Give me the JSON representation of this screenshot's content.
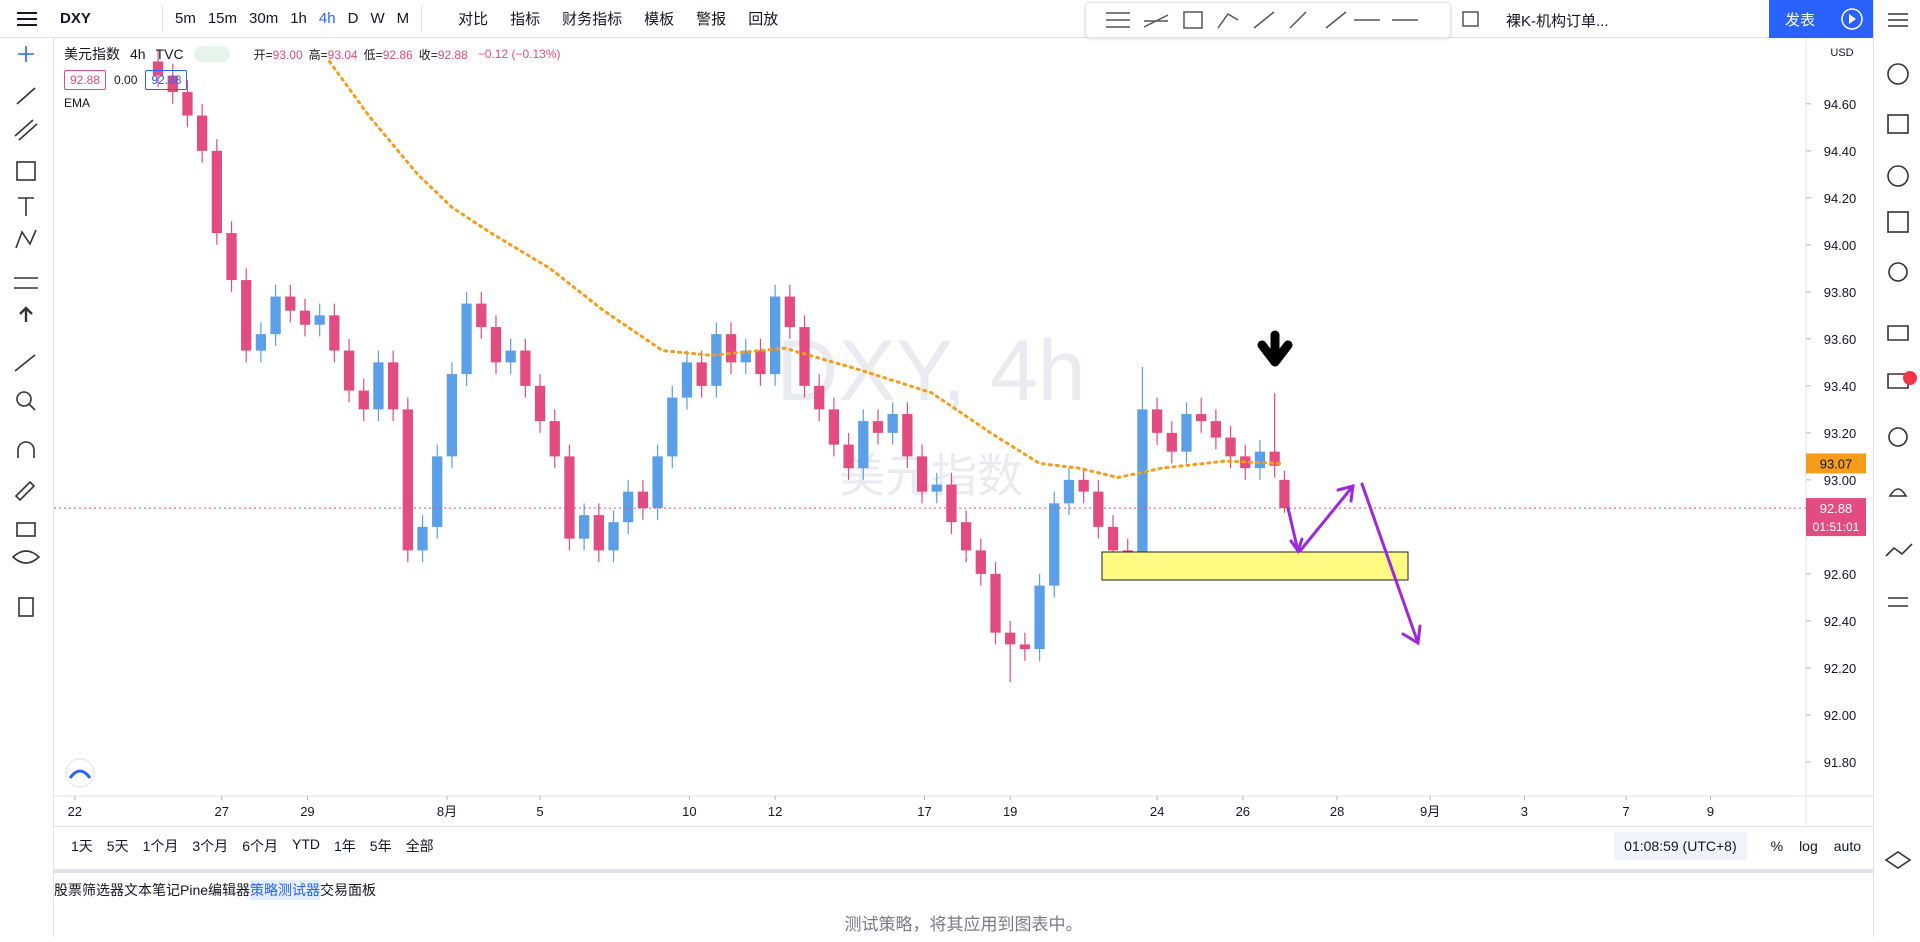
{
  "toolbar": {
    "symbol": "DXY",
    "intervals": [
      "5m",
      "15m",
      "30m",
      "1h",
      "4h",
      "D",
      "W",
      "M"
    ],
    "active_interval": "4h",
    "tools": [
      "对比",
      "指标",
      "财务指标",
      "模板",
      "警报",
      "回放"
    ],
    "layout": "裸K-机构订单...",
    "publish": "发表"
  },
  "legend": {
    "name": "美元指数",
    "interval": "4h",
    "source": "TVC",
    "ohlc": [
      {
        "label": "开=",
        "value": "93.00"
      },
      {
        "label": "高=",
        "value": "93.04"
      },
      {
        "label": "低=",
        "value": "92.86"
      },
      {
        "label": "收=",
        "value": "92.88"
      }
    ],
    "change": "−0.12 (−0.13%)",
    "bid": "92.88",
    "spread": "0.00",
    "ask": "92.88",
    "indicator": "EMA"
  },
  "chart_data": {
    "type": "candlestick",
    "currency": "USD",
    "watermark": {
      "symbol": "DXY, 4h",
      "name": "美元指数"
    },
    "x": [
      17,
      20,
      23,
      26,
      29,
      32,
      35,
      38,
      41,
      44,
      47,
      50,
      53,
      56,
      59,
      62,
      65,
      68,
      71,
      74,
      77,
      80,
      83,
      86,
      89,
      92,
      95,
      98,
      101,
      104,
      107,
      110,
      113,
      116,
      119,
      122,
      125,
      128,
      131,
      134,
      137,
      140,
      143,
      146,
      149,
      152,
      155,
      158,
      161,
      164,
      167,
      170,
      173,
      176,
      179,
      182,
      185,
      188,
      191,
      194,
      197,
      200,
      203,
      206,
      209,
      212,
      215,
      218,
      221,
      224,
      227,
      230,
      233,
      236,
      239,
      242,
      245,
      247
    ],
    "open": [
      94.78,
      94.72,
      94.65,
      94.55,
      94.4,
      94.05,
      93.85,
      93.55,
      93.62,
      93.78,
      93.72,
      93.66,
      93.7,
      93.55,
      93.38,
      93.3,
      93.5,
      93.3,
      92.7,
      92.8,
      93.1,
      93.45,
      93.75,
      93.65,
      93.5,
      93.55,
      93.4,
      93.25,
      93.1,
      92.75,
      92.85,
      92.7,
      92.82,
      92.95,
      92.88,
      93.1,
      93.35,
      93.5,
      93.4,
      93.62,
      93.5,
      93.55,
      93.45,
      93.78,
      93.65,
      93.4,
      93.3,
      93.15,
      93.05,
      93.25,
      93.2,
      93.28,
      93.1,
      92.95,
      92.98,
      92.82,
      92.7,
      92.6,
      92.35,
      92.3,
      92.28,
      92.55,
      92.9,
      93.0,
      92.95,
      92.8,
      92.7,
      92.66,
      93.3,
      93.2,
      93.12,
      93.28,
      93.25,
      93.18,
      93.1,
      93.05,
      93.12,
      93.0
    ],
    "high": [
      94.83,
      94.77,
      94.7,
      94.6,
      94.45,
      94.1,
      93.9,
      93.67,
      93.83,
      93.83,
      93.77,
      93.75,
      93.75,
      93.6,
      93.43,
      93.55,
      93.55,
      93.35,
      92.85,
      93.15,
      93.5,
      93.8,
      93.8,
      93.7,
      93.6,
      93.6,
      93.45,
      93.3,
      93.15,
      92.9,
      92.9,
      92.87,
      93.0,
      93.0,
      93.15,
      93.4,
      93.55,
      93.55,
      93.67,
      93.67,
      93.6,
      93.6,
      93.83,
      93.83,
      93.7,
      93.45,
      93.35,
      93.2,
      93.3,
      93.3,
      93.33,
      93.33,
      93.15,
      93.03,
      93.03,
      92.87,
      92.75,
      92.65,
      92.4,
      92.35,
      92.6,
      92.95,
      93.05,
      93.05,
      93.0,
      92.85,
      92.75,
      93.48,
      93.35,
      93.25,
      93.33,
      93.35,
      93.3,
      93.23,
      93.15,
      93.17,
      93.37,
      93.04
    ],
    "low": [
      94.67,
      94.6,
      94.5,
      94.35,
      94.0,
      93.8,
      93.5,
      93.5,
      93.57,
      93.67,
      93.61,
      93.61,
      93.5,
      93.33,
      93.25,
      93.25,
      93.25,
      92.65,
      92.65,
      92.75,
      93.05,
      93.4,
      93.6,
      93.45,
      93.45,
      93.35,
      93.2,
      93.05,
      92.7,
      92.7,
      92.65,
      92.65,
      92.77,
      92.83,
      92.83,
      93.05,
      93.3,
      93.35,
      93.35,
      93.45,
      93.45,
      93.4,
      93.4,
      93.6,
      93.35,
      93.25,
      93.1,
      93.0,
      93.0,
      93.15,
      93.15,
      93.05,
      92.9,
      92.9,
      92.77,
      92.65,
      92.55,
      92.3,
      92.14,
      92.23,
      92.23,
      92.5,
      92.85,
      92.9,
      92.75,
      92.65,
      92.61,
      92.61,
      93.15,
      93.07,
      93.07,
      93.2,
      93.13,
      93.05,
      93.0,
      93.0,
      93.01,
      92.86
    ],
    "close": [
      94.72,
      94.65,
      94.55,
      94.4,
      94.05,
      93.85,
      93.55,
      93.62,
      93.78,
      93.72,
      93.66,
      93.7,
      93.55,
      93.38,
      93.3,
      93.5,
      93.3,
      92.7,
      92.8,
      93.1,
      93.45,
      93.75,
      93.65,
      93.5,
      93.55,
      93.4,
      93.25,
      93.1,
      92.75,
      92.85,
      92.7,
      92.82,
      92.95,
      92.88,
      93.1,
      93.35,
      93.5,
      93.4,
      93.62,
      93.5,
      93.55,
      93.45,
      93.78,
      93.65,
      93.4,
      93.3,
      93.15,
      93.05,
      93.25,
      93.2,
      93.28,
      93.1,
      92.95,
      92.98,
      92.82,
      92.7,
      92.6,
      92.35,
      92.3,
      92.28,
      92.55,
      92.9,
      93.0,
      92.95,
      92.8,
      92.7,
      92.66,
      93.3,
      93.2,
      93.12,
      93.28,
      93.25,
      93.18,
      93.1,
      93.05,
      93.12,
      93.06,
      92.88
    ],
    "up_color": "#5a9fe8",
    "down_color": "#e24c80",
    "ema": {
      "name": "EMA",
      "color": "#f59c1a",
      "x": [
        52,
        60,
        70,
        77,
        85,
        97,
        108,
        120,
        130,
        145,
        160,
        175,
        187,
        197,
        205,
        213,
        222,
        235,
        246
      ],
      "values": [
        94.78,
        94.55,
        94.3,
        94.16,
        94.05,
        93.9,
        93.72,
        93.55,
        93.53,
        93.56,
        93.47,
        93.37,
        93.2,
        93.07,
        93.05,
        93.01,
        93.05,
        93.08,
        93.07
      ]
    },
    "countdown": "01:51:01",
    "xlim": [
      -4.25,
      353.5
    ],
    "xticks": [
      {
        "value": 0,
        "label": "22"
      },
      {
        "value": 30,
        "label": "27"
      },
      {
        "value": 47.5,
        "label": "29"
      },
      {
        "value": 76,
        "label": "8月"
      },
      {
        "value": 95,
        "label": "5"
      },
      {
        "value": 125.5,
        "label": "10"
      },
      {
        "value": 143,
        "label": "12"
      },
      {
        "value": 173.5,
        "label": "17"
      },
      {
        "value": 191,
        "label": "19"
      },
      {
        "value": 221,
        "label": "24"
      },
      {
        "value": 238.5,
        "label": "26"
      },
      {
        "value": 257.75,
        "label": "28"
      },
      {
        "value": 276.75,
        "label": "9月"
      },
      {
        "value": 296,
        "label": "3"
      },
      {
        "value": 316.75,
        "label": "7"
      },
      {
        "value": 334,
        "label": "9"
      }
    ],
    "ylim": [
      91.655,
      94.88
    ],
    "yticks": [
      {
        "value": 91.8,
        "label": "91.80"
      },
      {
        "value": 92.0,
        "label": "92.00"
      },
      {
        "value": 92.2,
        "label": "92.20"
      },
      {
        "value": 92.4,
        "label": "92.40"
      },
      {
        "value": 92.6,
        "label": "92.60"
      },
      {
        "value": 92.8,
        "label": "92.80"
      },
      {
        "value": 93.0,
        "label": "93.00"
      },
      {
        "value": 93.2,
        "label": "93.20"
      },
      {
        "value": 93.4,
        "label": "93.40"
      },
      {
        "value": 93.6,
        "label": "93.60"
      },
      {
        "value": 93.8,
        "label": "93.80"
      },
      {
        "value": 94.0,
        "label": "94.00"
      },
      {
        "value": 94.2,
        "label": "94.20"
      },
      {
        "value": 94.4,
        "label": "94.40"
      },
      {
        "value": 94.6,
        "label": "94.60"
      }
    ],
    "grid": false
  },
  "range_bar": {
    "ranges": [
      "1天",
      "5天",
      "1个月",
      "3个月",
      "6个月",
      "YTD",
      "1年",
      "5年",
      "全部"
    ],
    "clock": "01:08:59 (UTC+8)",
    "options": [
      "%",
      "log",
      "auto"
    ]
  },
  "bottom_panel": {
    "tabs": [
      "股票筛选器",
      "文本笔记",
      "Pine编辑器",
      "策略测试器",
      "交易面板"
    ],
    "active_tab": "策略测试器",
    "message": "测试策略，将其应用到图表中。"
  }
}
